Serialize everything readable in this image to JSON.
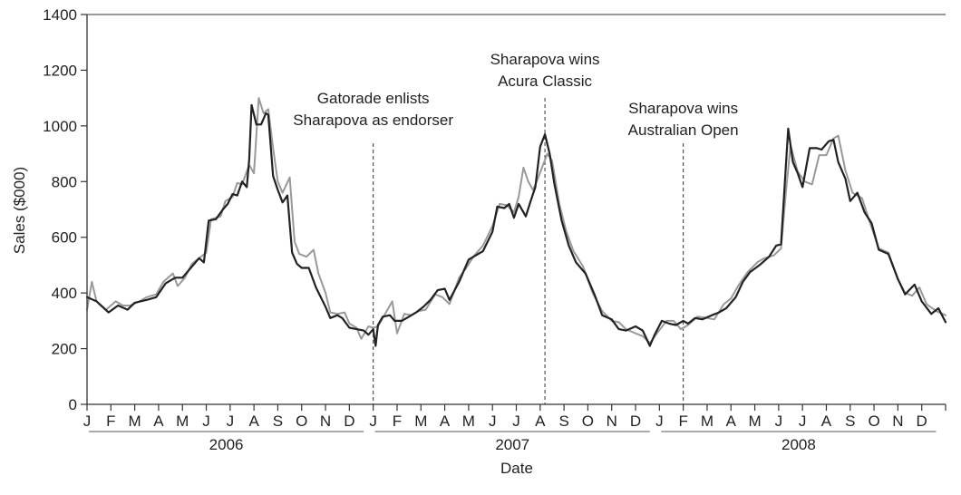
{
  "chart_data": {
    "type": "line",
    "title": "",
    "xlabel": "Date",
    "ylabel": "Sales ($000)",
    "ylim": [
      0,
      1400
    ],
    "yticks": [
      0,
      200,
      400,
      600,
      800,
      1000,
      1200,
      1400
    ],
    "grid": false,
    "legend": "none",
    "month_labels": [
      "J",
      "F",
      "M",
      "A",
      "M",
      "J",
      "J",
      "A",
      "S",
      "O",
      "N",
      "D",
      "J",
      "F",
      "M",
      "A",
      "M",
      "J",
      "J",
      "A",
      "S",
      "O",
      "N",
      "D",
      "J",
      "F",
      "M",
      "A",
      "M",
      "J",
      "J",
      "A",
      "S",
      "O",
      "N",
      "D"
    ],
    "years": [
      "2006",
      "2007",
      "2008"
    ],
    "x_unit": "month index (0 = Jan 2006)",
    "annotations": [
      {
        "x": 12.0,
        "lines": [
          "Gatorade enlists",
          "Sharapova as endorser"
        ]
      },
      {
        "x": 19.2,
        "lines": [
          "Sharapova wins",
          "Acura Classic"
        ]
      },
      {
        "x": 25.0,
        "lines": [
          "Sharapova wins",
          "Australian Open"
        ]
      }
    ],
    "series": [
      {
        "color": "#222222",
        "points": [
          [
            0.0,
            385
          ],
          [
            0.4,
            370
          ],
          [
            0.9,
            330
          ],
          [
            1.3,
            355
          ],
          [
            1.7,
            340
          ],
          [
            2.0,
            365
          ],
          [
            2.5,
            375
          ],
          [
            2.9,
            385
          ],
          [
            3.3,
            435
          ],
          [
            3.7,
            455
          ],
          [
            4.0,
            455
          ],
          [
            4.4,
            495
          ],
          [
            4.7,
            525
          ],
          [
            4.9,
            510
          ],
          [
            5.1,
            660
          ],
          [
            5.4,
            665
          ],
          [
            5.7,
            700
          ],
          [
            5.9,
            720
          ],
          [
            6.1,
            755
          ],
          [
            6.3,
            750
          ],
          [
            6.5,
            800
          ],
          [
            6.7,
            780
          ],
          [
            6.8,
            880
          ],
          [
            6.9,
            1075
          ],
          [
            7.1,
            1005
          ],
          [
            7.3,
            1005
          ],
          [
            7.5,
            1045
          ],
          [
            7.6,
            1040
          ],
          [
            7.8,
            820
          ],
          [
            8.0,
            770
          ],
          [
            8.2,
            725
          ],
          [
            8.4,
            750
          ],
          [
            8.6,
            545
          ],
          [
            8.8,
            505
          ],
          [
            9.0,
            490
          ],
          [
            9.3,
            490
          ],
          [
            9.6,
            420
          ],
          [
            10.0,
            350
          ],
          [
            10.2,
            310
          ],
          [
            10.5,
            320
          ],
          [
            10.7,
            310
          ],
          [
            11.0,
            275
          ],
          [
            11.3,
            270
          ],
          [
            11.6,
            265
          ],
          [
            11.8,
            250
          ],
          [
            12.0,
            270
          ],
          [
            12.1,
            210
          ],
          [
            12.2,
            285
          ],
          [
            12.4,
            315
          ],
          [
            12.7,
            320
          ],
          [
            12.9,
            300
          ],
          [
            13.2,
            300
          ],
          [
            13.5,
            315
          ],
          [
            13.8,
            330
          ],
          [
            14.1,
            350
          ],
          [
            14.4,
            375
          ],
          [
            14.7,
            410
          ],
          [
            15.0,
            415
          ],
          [
            15.2,
            375
          ],
          [
            15.6,
            440
          ],
          [
            16.0,
            520
          ],
          [
            16.3,
            535
          ],
          [
            16.6,
            550
          ],
          [
            17.0,
            620
          ],
          [
            17.2,
            710
          ],
          [
            17.5,
            705
          ],
          [
            17.7,
            720
          ],
          [
            17.9,
            670
          ],
          [
            18.1,
            720
          ],
          [
            18.4,
            675
          ],
          [
            18.6,
            730
          ],
          [
            18.8,
            780
          ],
          [
            19.0,
            925
          ],
          [
            19.2,
            970
          ],
          [
            19.4,
            900
          ],
          [
            19.6,
            790
          ],
          [
            19.9,
            660
          ],
          [
            20.2,
            570
          ],
          [
            20.5,
            510
          ],
          [
            20.9,
            470
          ],
          [
            21.3,
            390
          ],
          [
            21.6,
            320
          ],
          [
            22.0,
            305
          ],
          [
            22.3,
            270
          ],
          [
            22.6,
            265
          ],
          [
            23.0,
            280
          ],
          [
            23.3,
            265
          ],
          [
            23.6,
            210
          ],
          [
            23.8,
            250
          ],
          [
            24.1,
            300
          ],
          [
            24.4,
            290
          ],
          [
            24.7,
            285
          ],
          [
            25.0,
            300
          ],
          [
            25.2,
            290
          ],
          [
            25.5,
            310
          ],
          [
            25.8,
            305
          ],
          [
            26.2,
            320
          ],
          [
            26.5,
            330
          ],
          [
            26.8,
            345
          ],
          [
            27.2,
            385
          ],
          [
            27.5,
            440
          ],
          [
            27.8,
            475
          ],
          [
            28.2,
            500
          ],
          [
            28.6,
            530
          ],
          [
            28.9,
            570
          ],
          [
            29.1,
            575
          ],
          [
            29.3,
            855
          ],
          [
            29.4,
            990
          ],
          [
            29.6,
            870
          ],
          [
            29.8,
            830
          ],
          [
            30.0,
            780
          ],
          [
            30.3,
            920
          ],
          [
            30.6,
            920
          ],
          [
            30.8,
            915
          ],
          [
            31.1,
            945
          ],
          [
            31.3,
            950
          ],
          [
            31.5,
            870
          ],
          [
            31.8,
            810
          ],
          [
            32.0,
            730
          ],
          [
            32.3,
            760
          ],
          [
            32.6,
            690
          ],
          [
            32.9,
            650
          ],
          [
            33.2,
            555
          ],
          [
            33.6,
            540
          ],
          [
            34.0,
            450
          ],
          [
            34.3,
            395
          ],
          [
            34.7,
            430
          ],
          [
            35.0,
            370
          ],
          [
            35.4,
            325
          ],
          [
            35.7,
            345
          ],
          [
            36.0,
            295
          ]
        ]
      },
      {
        "color": "#999999",
        "points": [
          [
            0.0,
            340
          ],
          [
            0.2,
            440
          ],
          [
            0.4,
            370
          ],
          [
            0.8,
            340
          ],
          [
            1.2,
            370
          ],
          [
            1.5,
            355
          ],
          [
            1.8,
            355
          ],
          [
            2.2,
            370
          ],
          [
            2.5,
            385
          ],
          [
            2.9,
            395
          ],
          [
            3.2,
            440
          ],
          [
            3.6,
            470
          ],
          [
            3.8,
            425
          ],
          [
            4.1,
            455
          ],
          [
            4.4,
            505
          ],
          [
            4.7,
            525
          ],
          [
            5.0,
            545
          ],
          [
            5.2,
            665
          ],
          [
            5.6,
            675
          ],
          [
            5.8,
            730
          ],
          [
            6.1,
            745
          ],
          [
            6.3,
            795
          ],
          [
            6.5,
            790
          ],
          [
            6.8,
            860
          ],
          [
            7.0,
            830
          ],
          [
            7.2,
            1100
          ],
          [
            7.4,
            1045
          ],
          [
            7.6,
            1060
          ],
          [
            7.8,
            920
          ],
          [
            8.0,
            800
          ],
          [
            8.2,
            760
          ],
          [
            8.5,
            815
          ],
          [
            8.7,
            585
          ],
          [
            8.9,
            540
          ],
          [
            9.2,
            530
          ],
          [
            9.5,
            555
          ],
          [
            9.7,
            470
          ],
          [
            10.0,
            400
          ],
          [
            10.2,
            330
          ],
          [
            10.5,
            325
          ],
          [
            10.8,
            330
          ],
          [
            11.0,
            290
          ],
          [
            11.3,
            275
          ],
          [
            11.5,
            235
          ],
          [
            11.8,
            280
          ],
          [
            12.0,
            275
          ],
          [
            12.2,
            280
          ],
          [
            12.5,
            325
          ],
          [
            12.8,
            370
          ],
          [
            13.0,
            255
          ],
          [
            13.3,
            325
          ],
          [
            13.6,
            320
          ],
          [
            13.9,
            335
          ],
          [
            14.2,
            340
          ],
          [
            14.6,
            395
          ],
          [
            14.9,
            385
          ],
          [
            15.2,
            360
          ],
          [
            15.6,
            455
          ],
          [
            15.9,
            490
          ],
          [
            16.2,
            530
          ],
          [
            16.6,
            570
          ],
          [
            17.0,
            640
          ],
          [
            17.3,
            720
          ],
          [
            17.6,
            715
          ],
          [
            17.9,
            690
          ],
          [
            18.1,
            745
          ],
          [
            18.3,
            850
          ],
          [
            18.5,
            800
          ],
          [
            18.7,
            770
          ],
          [
            18.9,
            810
          ],
          [
            19.1,
            855
          ],
          [
            19.3,
            900
          ],
          [
            19.5,
            875
          ],
          [
            19.8,
            720
          ],
          [
            20.1,
            620
          ],
          [
            20.4,
            550
          ],
          [
            20.8,
            495
          ],
          [
            21.2,
            400
          ],
          [
            21.6,
            335
          ],
          [
            22.0,
            300
          ],
          [
            22.3,
            295
          ],
          [
            22.6,
            270
          ],
          [
            23.0,
            255
          ],
          [
            23.3,
            245
          ],
          [
            23.6,
            220
          ],
          [
            23.9,
            255
          ],
          [
            24.3,
            300
          ],
          [
            24.6,
            300
          ],
          [
            24.9,
            270
          ],
          [
            25.2,
            285
          ],
          [
            25.6,
            315
          ],
          [
            26.0,
            310
          ],
          [
            26.3,
            305
          ],
          [
            26.7,
            360
          ],
          [
            27.0,
            380
          ],
          [
            27.3,
            425
          ],
          [
            27.7,
            475
          ],
          [
            28.1,
            510
          ],
          [
            28.4,
            525
          ],
          [
            28.8,
            535
          ],
          [
            29.1,
            560
          ],
          [
            29.3,
            760
          ],
          [
            29.5,
            930
          ],
          [
            29.8,
            835
          ],
          [
            30.1,
            800
          ],
          [
            30.4,
            790
          ],
          [
            30.7,
            895
          ],
          [
            31.0,
            895
          ],
          [
            31.3,
            955
          ],
          [
            31.5,
            965
          ],
          [
            31.8,
            840
          ],
          [
            32.1,
            760
          ],
          [
            32.5,
            740
          ],
          [
            32.8,
            660
          ],
          [
            33.2,
            560
          ],
          [
            33.6,
            545
          ],
          [
            34.0,
            450
          ],
          [
            34.3,
            400
          ],
          [
            34.6,
            390
          ],
          [
            34.9,
            420
          ],
          [
            35.2,
            360
          ],
          [
            35.6,
            335
          ],
          [
            36.0,
            320
          ]
        ]
      }
    ]
  }
}
